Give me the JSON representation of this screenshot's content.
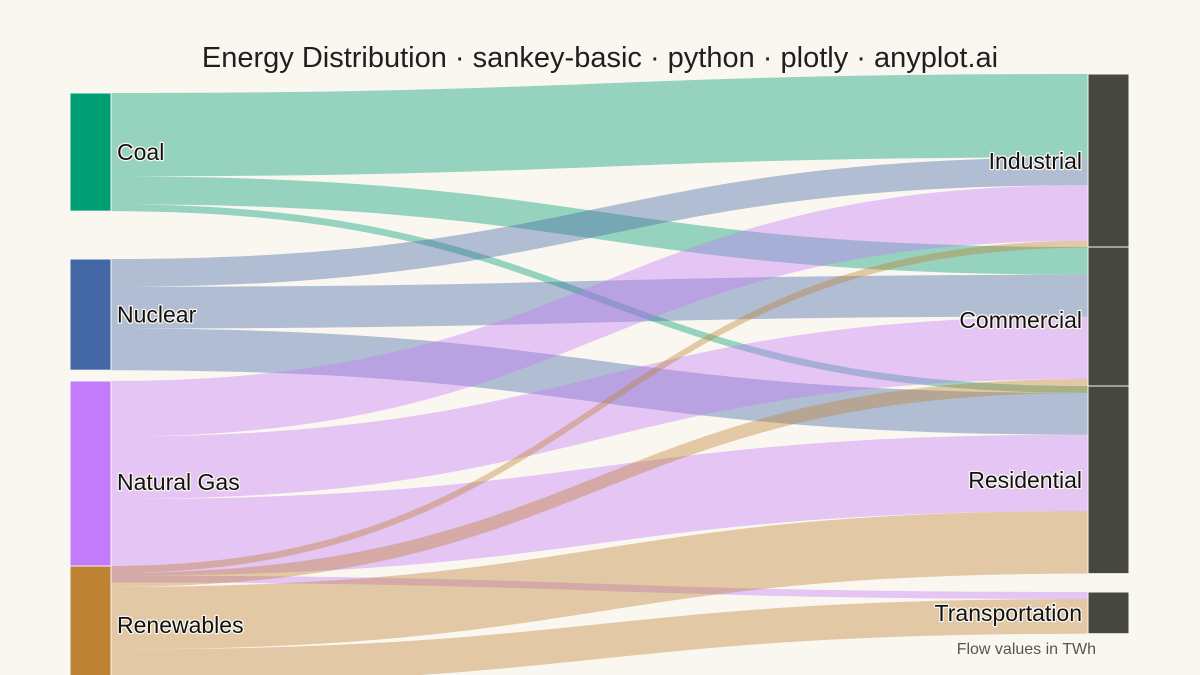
{
  "chart_data": {
    "type": "sankey",
    "title": "Energy Distribution · sankey-basic · python · plotly · anyplot.ai",
    "note": "Flow values in TWh",
    "sources": [
      {
        "name": "Coal",
        "color": "#009E73"
      },
      {
        "name": "Nuclear",
        "color": "#4467A6"
      },
      {
        "name": "Natural Gas",
        "color": "#C27BFA"
      },
      {
        "name": "Renewables",
        "color": "#BD8233"
      }
    ],
    "targets": [
      {
        "name": "Industrial",
        "color": "#474742"
      },
      {
        "name": "Commercial",
        "color": "#474742"
      },
      {
        "name": "Residential",
        "color": "#474742"
      },
      {
        "name": "Transportation",
        "color": "#474742"
      }
    ],
    "links": [
      {
        "source": "Coal",
        "target": "Industrial",
        "value": 60
      },
      {
        "source": "Coal",
        "target": "Commercial",
        "value": 20
      },
      {
        "source": "Coal",
        "target": "Residential",
        "value": 5
      },
      {
        "source": "Nuclear",
        "target": "Industrial",
        "value": 20
      },
      {
        "source": "Nuclear",
        "target": "Commercial",
        "value": 30
      },
      {
        "source": "Nuclear",
        "target": "Residential",
        "value": 30
      },
      {
        "source": "Natural Gas",
        "target": "Industrial",
        "value": 40
      },
      {
        "source": "Natural Gas",
        "target": "Commercial",
        "value": 45
      },
      {
        "source": "Natural Gas",
        "target": "Residential",
        "value": 55
      },
      {
        "source": "Natural Gas",
        "target": "Transportation",
        "value": 5
      },
      {
        "source": "Renewables",
        "target": "Industrial",
        "value": 5
      },
      {
        "source": "Renewables",
        "target": "Commercial",
        "value": 10
      },
      {
        "source": "Renewables",
        "target": "Residential",
        "value": 45
      },
      {
        "source": "Renewables",
        "target": "Transportation",
        "value": 25
      }
    ]
  }
}
